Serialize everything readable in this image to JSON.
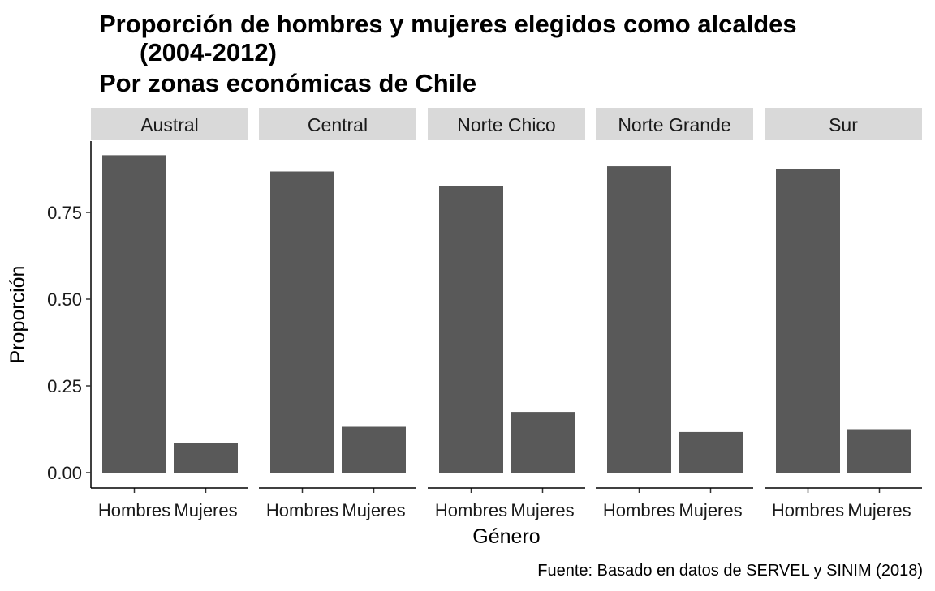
{
  "chart_data": {
    "type": "bar",
    "title": "Proporción de hombres y mujeres elegidos como alcaldes\n(2004-2012)\nPor zonas económicas de Chile",
    "title_lines": [
      "Proporción de hombres y mujeres elegidos como alcaldes",
      "(2004-2012)",
      "Por zonas económicas de Chile"
    ],
    "xlabel": "Género",
    "ylabel": "Proporción",
    "caption": "Fuente: Basado en datos de SERVEL y SINIM (2018)",
    "categories": [
      "Hombres",
      "Mujeres"
    ],
    "ylim": [
      0,
      0.93
    ],
    "yticks": [
      0,
      0.25,
      0.5,
      0.75
    ],
    "ytick_labels": [
      "0.00",
      "0.25",
      "0.50",
      "0.75"
    ],
    "facets": [
      {
        "name": "Austral",
        "values": [
          0.915,
          0.085
        ]
      },
      {
        "name": "Central",
        "values": [
          0.868,
          0.132
        ]
      },
      {
        "name": "Norte Chico",
        "values": [
          0.825,
          0.175
        ]
      },
      {
        "name": "Norte Grande",
        "values": [
          0.883,
          0.117
        ]
      },
      {
        "name": "Sur",
        "values": [
          0.875,
          0.125
        ]
      }
    ],
    "grid": false,
    "colors": {
      "bar": "#595959",
      "strip": "#d9d9d9"
    }
  }
}
